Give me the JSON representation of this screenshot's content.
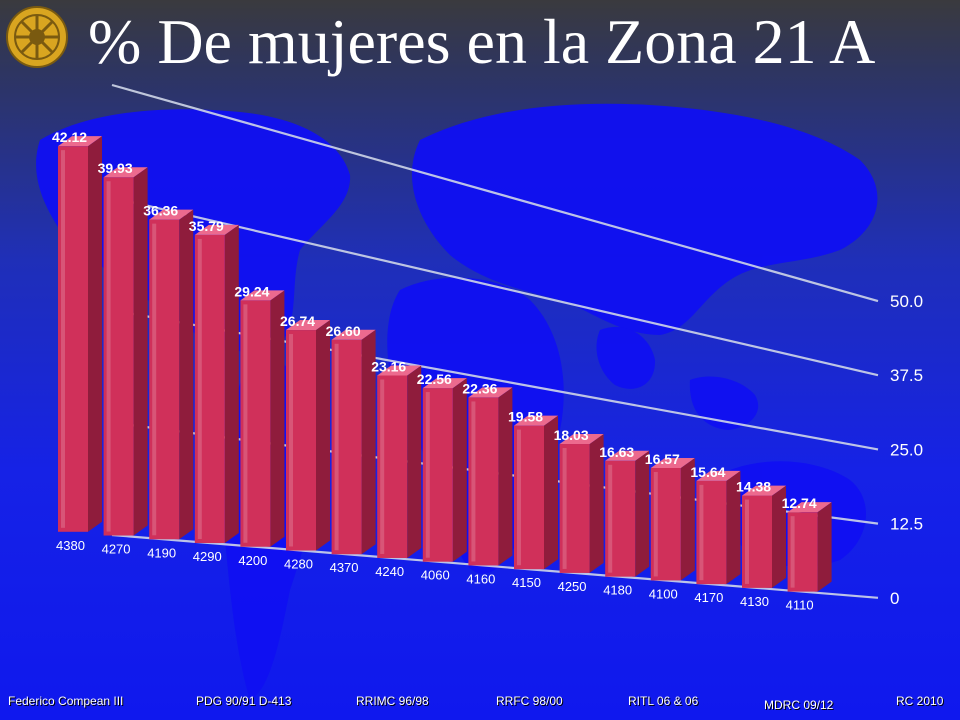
{
  "title": "% De mujeres en la Zona 21 A",
  "logo": {
    "icon": "rotary-wheel-icon",
    "color": "#d9a520"
  },
  "footer": {
    "items": [
      "Federico Compean III",
      "PDG 90/91 D-413",
      "RRIMC 96/98",
      "RRFC 98/00",
      "RITL 06 & 06",
      "MDRC 09/12",
      "RC 2010"
    ]
  },
  "chart_data": {
    "type": "bar",
    "title": "",
    "xlabel": "",
    "ylabel": "",
    "ylim": [
      0,
      50
    ],
    "yticks": [
      "0",
      "12.5",
      "25.0",
      "37.5",
      "50.0"
    ],
    "categories": [
      "4380",
      "4270",
      "4190",
      "4290",
      "4200",
      "4280",
      "4370",
      "4240",
      "4060",
      "4160",
      "4150",
      "4250",
      "4180",
      "4100",
      "4170",
      "4130",
      "4110"
    ],
    "values": [
      42.12,
      39.93,
      36.36,
      35.79,
      29.24,
      26.74,
      26.6,
      23.16,
      22.56,
      22.36,
      19.58,
      18.03,
      16.63,
      16.57,
      15.64,
      14.38,
      12.74
    ],
    "value_labels": [
      "42.12",
      "39.93",
      "36.36",
      "35.79",
      "29.24",
      "26.74",
      "26.60",
      "23.16",
      "22.56",
      "22.36",
      "19.58",
      "18.03",
      "16.63",
      "16.57",
      "15.64",
      "14.38",
      "12.74"
    ],
    "bar_color": "#d0305a",
    "grid": true,
    "legend": "none"
  }
}
